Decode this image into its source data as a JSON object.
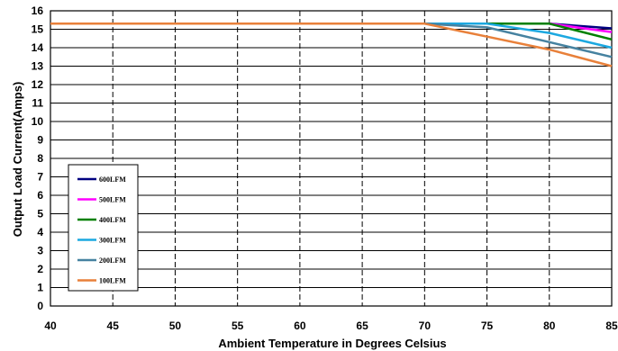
{
  "chart_data": {
    "type": "line",
    "xlabel": "Ambient Temperature in Degrees Celsius",
    "ylabel": "Output  Load Current(Amps)",
    "xlim": [
      40,
      85
    ],
    "ylim": [
      0,
      16
    ],
    "xticks": [
      "40",
      "45",
      "50",
      "55",
      "60",
      "65",
      "70",
      "75",
      "80",
      "85"
    ],
    "yticks": [
      "0",
      "1",
      "2",
      "3",
      "4",
      "5",
      "6",
      "7",
      "8",
      "9",
      "10",
      "11",
      "12",
      "13",
      "14",
      "15",
      "16"
    ],
    "grid": true,
    "legend_position": "bottom-left",
    "series": [
      {
        "name": "600LFM",
        "color": "#000080",
        "x": [
          40,
          70,
          75,
          80,
          85
        ],
        "y": [
          15.3,
          15.3,
          15.3,
          15.3,
          15.05
        ]
      },
      {
        "name": "500LFM",
        "color": "#ff00ff",
        "x": [
          40,
          70,
          75,
          80,
          85
        ],
        "y": [
          15.3,
          15.3,
          15.3,
          15.3,
          14.85
        ]
      },
      {
        "name": "400LFM",
        "color": "#008000",
        "x": [
          40,
          70,
          75,
          80,
          85
        ],
        "y": [
          15.3,
          15.3,
          15.3,
          15.3,
          14.45
        ]
      },
      {
        "name": "300LFM",
        "color": "#1ca8e0",
        "x": [
          40,
          70,
          75,
          80,
          85
        ],
        "y": [
          15.3,
          15.3,
          15.3,
          14.8,
          14.0
        ]
      },
      {
        "name": "200LFM",
        "color": "#4682a0",
        "x": [
          40,
          70,
          75,
          80,
          85
        ],
        "y": [
          15.3,
          15.3,
          15.1,
          14.3,
          13.5
        ]
      },
      {
        "name": "100LFM",
        "color": "#e8803a",
        "x": [
          40,
          70,
          75,
          80,
          85
        ],
        "y": [
          15.3,
          15.3,
          14.6,
          13.9,
          13.0
        ]
      }
    ]
  }
}
